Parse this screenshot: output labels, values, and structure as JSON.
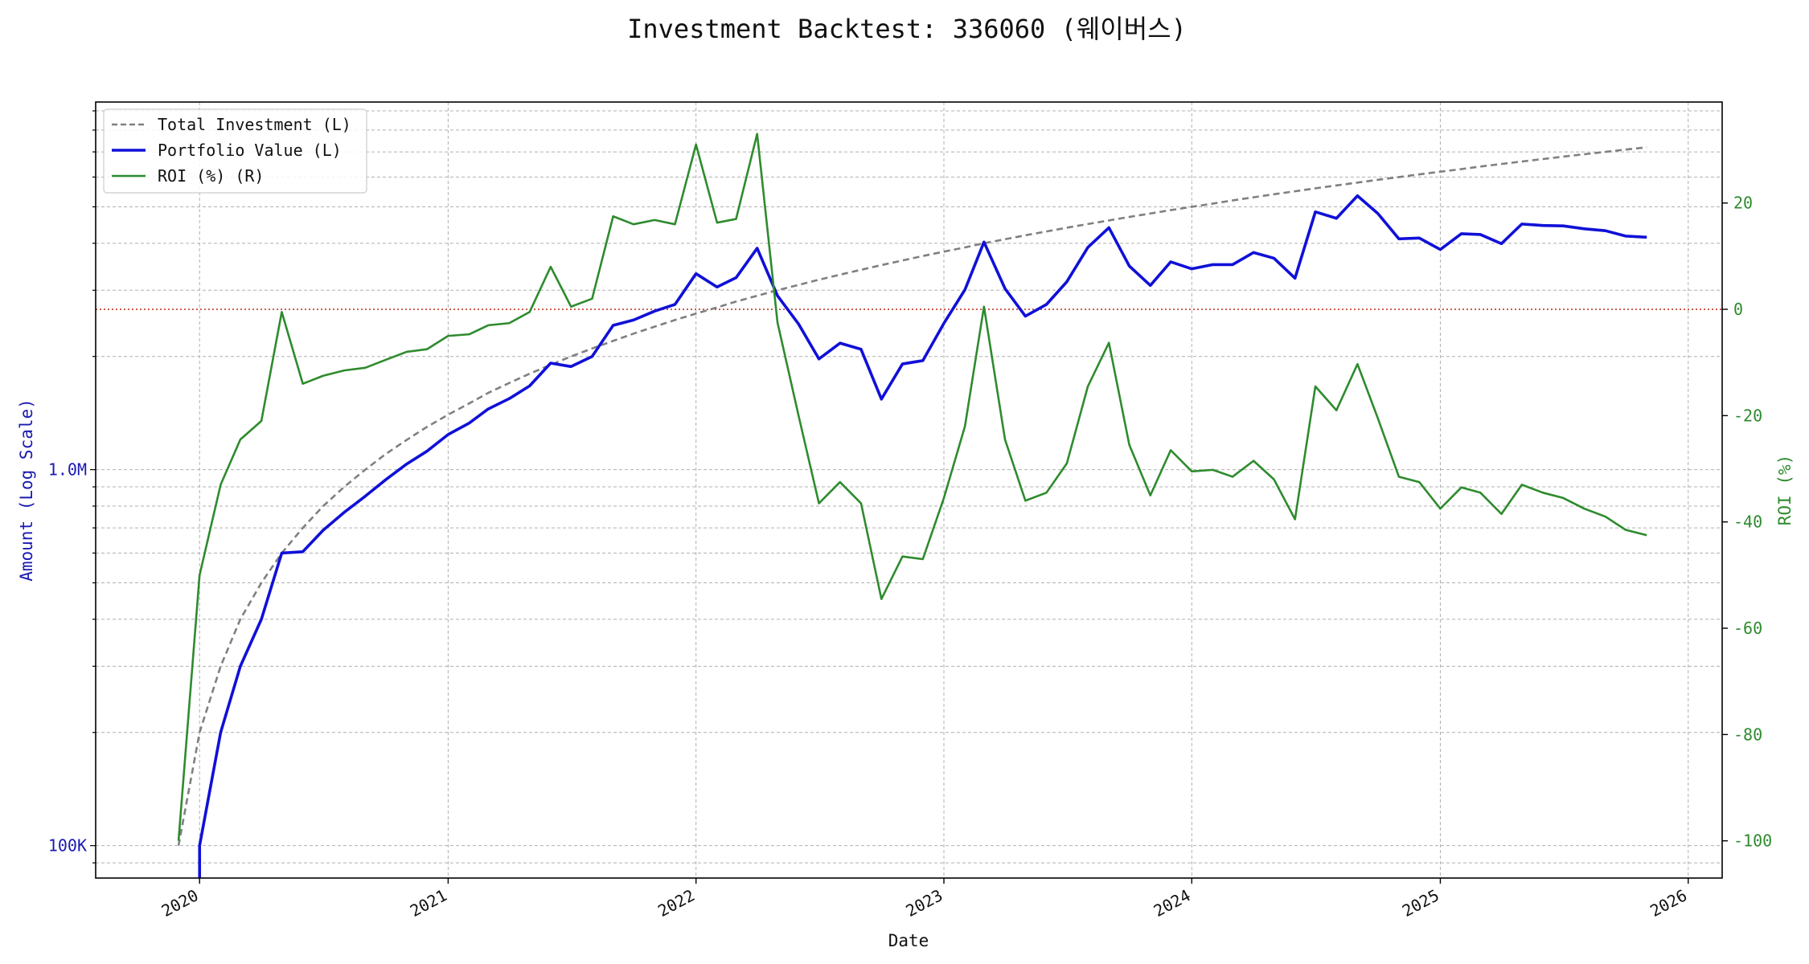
{
  "chart_data": {
    "type": "line",
    "title": "Investment Backtest: 336060 (웨이버스)",
    "xlabel": "Date",
    "ylabel_left": "Amount (Log Scale)",
    "ylabel_right": "ROI (%)",
    "left_scale": "log",
    "left_ylim": [
      82000,
      9500000
    ],
    "right_ylim": [
      -107,
      39
    ],
    "x_range": [
      "2019-08-01",
      "2026-02-20"
    ],
    "grid": true,
    "legend_position": "upper-left",
    "x_ticks": [
      "2020-01-01",
      "2021-01-01",
      "2022-01-01",
      "2023-01-01",
      "2024-01-01",
      "2025-01-01",
      "2026-01-01"
    ],
    "x_tick_labels": [
      "2020",
      "2021",
      "2022",
      "2023",
      "2024",
      "2025",
      "2026"
    ],
    "left_ticks": [
      {
        "value": 100000,
        "label": "100K"
      },
      {
        "value": 1000000,
        "label": "1.0M"
      }
    ],
    "right_ticks": [
      {
        "value": 20,
        "label": "20"
      },
      {
        "value": 0,
        "label": "0"
      },
      {
        "value": -20,
        "label": "-20"
      },
      {
        "value": -40,
        "label": "-40"
      },
      {
        "value": -60,
        "label": "-60"
      },
      {
        "value": -80,
        "label": "-80"
      },
      {
        "value": -100,
        "label": "-100"
      }
    ],
    "reference_line": {
      "axis": "right",
      "value": 0,
      "color": "#c0392b"
    },
    "colors": {
      "total_investment": "#808080",
      "portfolio": "#1010d8",
      "roi": "#2e8b2e",
      "left_axis": "#1a1ab0",
      "right_axis": "#2e8b2e"
    },
    "series": [
      {
        "name": "Total Investment (L)",
        "axis": "left",
        "style": "dashed",
        "points": [
          [
            "2019-12-01",
            100000
          ],
          [
            "2020-01-01",
            200000
          ],
          [
            "2020-02-01",
            300000
          ],
          [
            "2020-03-01",
            400000
          ],
          [
            "2020-04-01",
            500000
          ],
          [
            "2020-05-01",
            600000
          ],
          [
            "2020-06-01",
            700000
          ],
          [
            "2020-07-01",
            800000
          ],
          [
            "2020-08-01",
            900000
          ],
          [
            "2020-09-01",
            1000000
          ],
          [
            "2020-10-01",
            1100000
          ],
          [
            "2020-11-01",
            1200000
          ],
          [
            "2020-12-01",
            1300000
          ],
          [
            "2021-01-01",
            1400000
          ],
          [
            "2021-02-01",
            1500000
          ],
          [
            "2021-03-01",
            1600000
          ],
          [
            "2021-04-01",
            1700000
          ],
          [
            "2021-05-01",
            1800000
          ],
          [
            "2021-06-01",
            1900000
          ],
          [
            "2021-07-01",
            2000000
          ],
          [
            "2021-08-01",
            2100000
          ],
          [
            "2021-09-01",
            2200000
          ],
          [
            "2021-10-01",
            2300000
          ],
          [
            "2021-11-01",
            2400000
          ],
          [
            "2021-12-01",
            2500000
          ],
          [
            "2022-01-01",
            2600000
          ],
          [
            "2022-02-01",
            2700000
          ],
          [
            "2022-03-01",
            2800000
          ],
          [
            "2022-04-01",
            2900000
          ],
          [
            "2022-05-01",
            3000000
          ],
          [
            "2022-06-01",
            3100000
          ],
          [
            "2022-07-01",
            3200000
          ],
          [
            "2022-08-01",
            3300000
          ],
          [
            "2022-09-01",
            3400000
          ],
          [
            "2022-10-01",
            3500000
          ],
          [
            "2022-11-01",
            3600000
          ],
          [
            "2022-12-01",
            3700000
          ],
          [
            "2023-01-01",
            3800000
          ],
          [
            "2023-02-01",
            3900000
          ],
          [
            "2023-03-01",
            4000000
          ],
          [
            "2023-04-01",
            4100000
          ],
          [
            "2023-05-01",
            4200000
          ],
          [
            "2023-06-01",
            4300000
          ],
          [
            "2023-07-01",
            4400000
          ],
          [
            "2023-08-01",
            4500000
          ],
          [
            "2023-09-01",
            4600000
          ],
          [
            "2023-10-01",
            4700000
          ],
          [
            "2023-11-01",
            4800000
          ],
          [
            "2023-12-01",
            4900000
          ],
          [
            "2024-01-01",
            5000000
          ],
          [
            "2024-02-01",
            5100000
          ],
          [
            "2024-03-01",
            5200000
          ],
          [
            "2024-04-01",
            5300000
          ],
          [
            "2024-05-01",
            5400000
          ],
          [
            "2024-06-01",
            5500000
          ],
          [
            "2024-07-01",
            5600000
          ],
          [
            "2024-08-01",
            5700000
          ],
          [
            "2024-09-01",
            5800000
          ],
          [
            "2024-10-01",
            5900000
          ],
          [
            "2024-11-01",
            6000000
          ],
          [
            "2024-12-01",
            6100000
          ],
          [
            "2025-01-01",
            6200000
          ],
          [
            "2025-02-01",
            6300000
          ],
          [
            "2025-03-01",
            6400000
          ],
          [
            "2025-04-01",
            6500000
          ],
          [
            "2025-05-01",
            6600000
          ],
          [
            "2025-06-01",
            6700000
          ],
          [
            "2025-07-01",
            6800000
          ],
          [
            "2025-08-01",
            6900000
          ],
          [
            "2025-09-01",
            7000000
          ],
          [
            "2025-10-01",
            7100000
          ],
          [
            "2025-11-01",
            7200000
          ]
        ]
      },
      {
        "name": "Portfolio Value (L)",
        "axis": "left",
        "style": "solid",
        "points": [
          [
            "2020-01-01",
            50000
          ],
          [
            "2020-01-01",
            100000
          ],
          [
            "2020-02-01",
            200000
          ],
          [
            "2020-03-01",
            300000
          ],
          [
            "2020-04-01",
            400000
          ],
          [
            "2020-05-01",
            600000
          ],
          [
            "2020-06-01",
            605000
          ],
          [
            "2020-07-01",
            690000
          ],
          [
            "2020-08-01",
            770000
          ],
          [
            "2020-09-01",
            850000
          ],
          [
            "2020-10-01",
            940000
          ],
          [
            "2020-11-01",
            1035000
          ],
          [
            "2020-12-01",
            1120000
          ],
          [
            "2021-01-01",
            1240000
          ],
          [
            "2021-02-01",
            1330000
          ],
          [
            "2021-03-01",
            1450000
          ],
          [
            "2021-04-01",
            1545000
          ],
          [
            "2021-05-01",
            1670000
          ],
          [
            "2021-06-01",
            1920000
          ],
          [
            "2021-07-01",
            1880000
          ],
          [
            "2021-08-01",
            2000000
          ],
          [
            "2021-09-01",
            2420000
          ],
          [
            "2021-10-01",
            2500000
          ],
          [
            "2021-11-01",
            2640000
          ],
          [
            "2021-12-01",
            2750000
          ],
          [
            "2022-01-01",
            3320000
          ],
          [
            "2022-02-01",
            3060000
          ],
          [
            "2022-03-01",
            3240000
          ],
          [
            "2022-04-01",
            3880000
          ],
          [
            "2022-05-01",
            2900000
          ],
          [
            "2022-06-01",
            2440000
          ],
          [
            "2022-07-01",
            1970000
          ],
          [
            "2022-08-01",
            2170000
          ],
          [
            "2022-09-01",
            2090000
          ],
          [
            "2022-10-01",
            1540000
          ],
          [
            "2022-11-01",
            1910000
          ],
          [
            "2022-12-01",
            1950000
          ],
          [
            "2023-01-01",
            2450000
          ],
          [
            "2023-02-01",
            3010000
          ],
          [
            "2023-03-01",
            4030000
          ],
          [
            "2023-04-01",
            3030000
          ],
          [
            "2023-05-01",
            2560000
          ],
          [
            "2023-06-01",
            2750000
          ],
          [
            "2023-07-01",
            3160000
          ],
          [
            "2023-08-01",
            3900000
          ],
          [
            "2023-09-01",
            4400000
          ],
          [
            "2023-10-01",
            3480000
          ],
          [
            "2023-11-01",
            3090000
          ],
          [
            "2023-12-01",
            3570000
          ],
          [
            "2024-01-01",
            3420000
          ],
          [
            "2024-02-01",
            3510000
          ],
          [
            "2024-03-01",
            3510000
          ],
          [
            "2024-04-01",
            3780000
          ],
          [
            "2024-05-01",
            3650000
          ],
          [
            "2024-06-01",
            3230000
          ],
          [
            "2024-07-01",
            4850000
          ],
          [
            "2024-08-01",
            4660000
          ],
          [
            "2024-09-01",
            5350000
          ],
          [
            "2024-10-01",
            4800000
          ],
          [
            "2024-11-01",
            4110000
          ],
          [
            "2024-12-01",
            4130000
          ],
          [
            "2025-01-01",
            3850000
          ],
          [
            "2025-02-01",
            4240000
          ],
          [
            "2025-03-01",
            4220000
          ],
          [
            "2025-04-01",
            3990000
          ],
          [
            "2025-05-01",
            4500000
          ],
          [
            "2025-06-01",
            4460000
          ],
          [
            "2025-07-01",
            4450000
          ],
          [
            "2025-08-01",
            4370000
          ],
          [
            "2025-09-01",
            4320000
          ],
          [
            "2025-10-01",
            4180000
          ],
          [
            "2025-11-01",
            4150000
          ]
        ]
      },
      {
        "name": "ROI (%) (R)",
        "axis": "right",
        "style": "solid",
        "points": [
          [
            "2019-12-01",
            -100
          ],
          [
            "2020-01-01",
            -50
          ],
          [
            "2020-02-01",
            -33
          ],
          [
            "2020-03-01",
            -24.5
          ],
          [
            "2020-04-01",
            -21
          ],
          [
            "2020-05-01",
            -0.5
          ],
          [
            "2020-06-01",
            -14
          ],
          [
            "2020-07-01",
            -12.5
          ],
          [
            "2020-08-01",
            -11.5
          ],
          [
            "2020-09-01",
            -11
          ],
          [
            "2020-10-01",
            -9.5
          ],
          [
            "2020-11-01",
            -8
          ],
          [
            "2020-12-01",
            -7.5
          ],
          [
            "2021-01-01",
            -5
          ],
          [
            "2021-02-01",
            -4.7
          ],
          [
            "2021-03-01",
            -3
          ],
          [
            "2021-04-01",
            -2.6
          ],
          [
            "2021-05-01",
            -0.5
          ],
          [
            "2021-06-01",
            8
          ],
          [
            "2021-07-01",
            0.5
          ],
          [
            "2021-08-01",
            2
          ],
          [
            "2021-09-01",
            17.5
          ],
          [
            "2021-10-01",
            16
          ],
          [
            "2021-11-01",
            16.8
          ],
          [
            "2021-12-01",
            16
          ],
          [
            "2022-01-01",
            31
          ],
          [
            "2022-02-01",
            16.3
          ],
          [
            "2022-03-01",
            17
          ],
          [
            "2022-04-01",
            33
          ],
          [
            "2022-05-01",
            -2.5
          ],
          [
            "2022-06-01",
            -20
          ],
          [
            "2022-07-01",
            -36.5
          ],
          [
            "2022-08-01",
            -32.5
          ],
          [
            "2022-09-01",
            -36.5
          ],
          [
            "2022-10-01",
            -54.5
          ],
          [
            "2022-11-01",
            -46.5
          ],
          [
            "2022-12-01",
            -47
          ],
          [
            "2023-01-01",
            -35.5
          ],
          [
            "2023-02-01",
            -22
          ],
          [
            "2023-03-01",
            0.5
          ],
          [
            "2023-04-01",
            -24.5
          ],
          [
            "2023-05-01",
            -36
          ],
          [
            "2023-06-01",
            -34.5
          ],
          [
            "2023-07-01",
            -29
          ],
          [
            "2023-08-01",
            -14.5
          ],
          [
            "2023-09-01",
            -6.3
          ],
          [
            "2023-10-01",
            -25.5
          ],
          [
            "2023-11-01",
            -35
          ],
          [
            "2023-12-01",
            -26.5
          ],
          [
            "2024-01-01",
            -30.5
          ],
          [
            "2024-02-01",
            -30.2
          ],
          [
            "2024-03-01",
            -31.5
          ],
          [
            "2024-04-01",
            -28.5
          ],
          [
            "2024-05-01",
            -32
          ],
          [
            "2024-06-01",
            -39.5
          ],
          [
            "2024-07-01",
            -14.5
          ],
          [
            "2024-08-01",
            -19
          ],
          [
            "2024-09-01",
            -10.3
          ],
          [
            "2024-10-01",
            -20.5
          ],
          [
            "2024-11-01",
            -31.5
          ],
          [
            "2024-12-01",
            -32.5
          ],
          [
            "2025-01-01",
            -37.5
          ],
          [
            "2025-02-01",
            -33.5
          ],
          [
            "2025-03-01",
            -34.5
          ],
          [
            "2025-04-01",
            -38.5
          ],
          [
            "2025-05-01",
            -33
          ],
          [
            "2025-06-01",
            -34.5
          ],
          [
            "2025-07-01",
            -35.5
          ],
          [
            "2025-08-01",
            -37.5
          ],
          [
            "2025-09-01",
            -39
          ],
          [
            "2025-10-01",
            -41.5
          ],
          [
            "2025-11-01",
            -42.5
          ]
        ]
      }
    ]
  }
}
